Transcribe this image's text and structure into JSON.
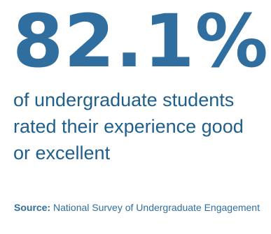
{
  "stat": {
    "value": "82.1%",
    "description": "of undergraduate students rated their experience good or excellent"
  },
  "source": {
    "label": "Source:",
    "text": " National Survey of Undergraduate Engagement"
  },
  "colors": {
    "accent": "#2f6e9f",
    "text": "#1f5f8b",
    "background": "#ffffff"
  }
}
